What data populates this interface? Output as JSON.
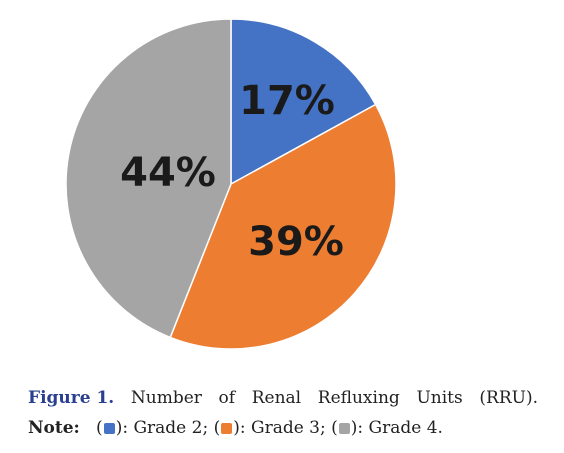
{
  "chart_data": {
    "type": "pie",
    "title": "",
    "categories": [
      "Grade 2",
      "Grade 3",
      "Grade 4"
    ],
    "values": [
      17,
      39,
      44
    ],
    "labels": [
      "17%",
      "39%",
      "44%"
    ],
    "colors": [
      "#4472c4",
      "#ed7d31",
      "#a5a5a5"
    ],
    "start_angle": "12 o'clock, clockwise",
    "legend": "caption-below"
  },
  "caption": {
    "figure_label": "Figure 1.",
    "figure_text": "Number of Renal Refluxing Units (RRU).",
    "note_label": "Note:",
    "legend_items": [
      {
        "open": "(",
        "close": "): Grade 2;",
        "color": "#4472c4"
      },
      {
        "open": "(",
        "close": "): Grade 3;",
        "color": "#ed7d31"
      },
      {
        "open": "(",
        "close": "): Grade 4.",
        "color": "#a5a5a5"
      }
    ]
  }
}
